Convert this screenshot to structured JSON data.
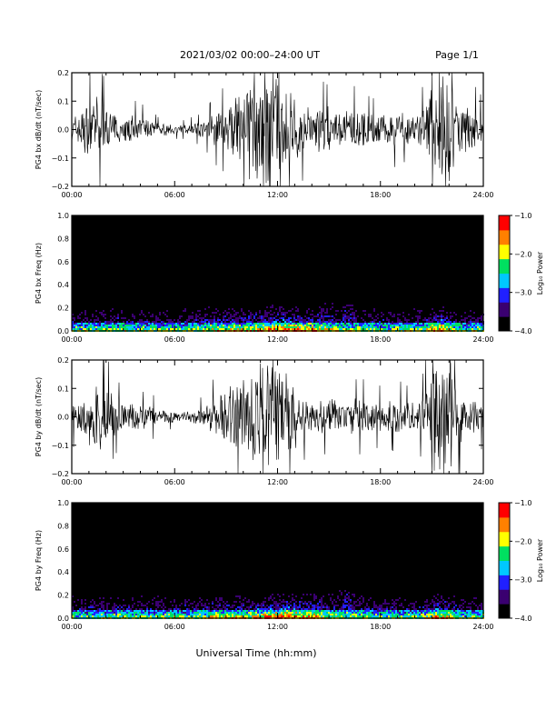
{
  "header": {
    "date_range": "2021/03/02  00:00–24:00 UT",
    "page": "Page 1/1"
  },
  "xlabel": "Universal Time (hh:mm)",
  "colorbar": {
    "label": "Log₁₀ Power",
    "ticks": [
      "−1.0",
      "−2.0",
      "−3.0",
      "−4.0"
    ],
    "colors": [
      "#000000",
      "#3a0070",
      "#2020ff",
      "#00c8ff",
      "#00e060",
      "#ffff00",
      "#ff8000",
      "#ff0000"
    ]
  },
  "chart_data": [
    {
      "type": "line",
      "title": "2021/03/02  00:00–24:00 UT",
      "ylabel": "PG4 bx dB/dt (nT/sec)",
      "xlim": [
        0,
        24
      ],
      "ylim": [
        -0.2,
        0.2
      ],
      "x_ticks": [
        "00:00",
        "06:00",
        "12:00",
        "18:00",
        "24:00"
      ],
      "y_ticks": [
        "0.2",
        "0.1",
        "0.0",
        "−0.1",
        "−0.2"
      ],
      "color": "#000000",
      "series": [
        {
          "x": [
            0,
            0.5,
            1,
            1.5,
            2,
            2.5,
            3,
            3.5,
            4,
            4.5,
            5,
            5.5,
            6,
            6.5,
            7,
            7.5,
            8,
            8.5,
            9,
            9.5,
            10,
            10.5,
            11,
            11.5,
            12,
            12.5,
            13,
            13.5,
            14,
            14.5,
            15,
            15.5,
            16,
            16.5,
            17,
            17.5,
            18,
            18.5,
            19,
            19.5,
            20,
            20.5,
            21,
            21.5,
            22,
            22.5,
            23,
            23.5,
            24
          ],
          "amplitude": [
            0.04,
            0.07,
            0.09,
            0.1,
            0.08,
            0.05,
            0.04,
            0.05,
            0.04,
            0.04,
            0.02,
            0.02,
            0.015,
            0.015,
            0.02,
            0.025,
            0.04,
            0.06,
            0.07,
            0.1,
            0.14,
            0.2,
            0.2,
            0.2,
            0.2,
            0.14,
            0.1,
            0.08,
            0.07,
            0.08,
            0.07,
            0.06,
            0.06,
            0.07,
            0.06,
            0.05,
            0.05,
            0.06,
            0.06,
            0.05,
            0.05,
            0.07,
            0.2,
            0.2,
            0.2,
            0.1,
            0.07,
            0.07,
            0.05
          ]
        }
      ]
    },
    {
      "type": "heatmap",
      "ylabel": "PG4 bx Freq (Hz)",
      "xlim": [
        0,
        24
      ],
      "ylim": [
        0,
        1.0
      ],
      "zlim": [
        -4.0,
        -1.0
      ],
      "x_ticks": [
        "00:00",
        "06:00",
        "12:00",
        "18:00",
        "24:00"
      ],
      "y_ticks": [
        "1.0",
        "0.8",
        "0.6",
        "0.4",
        "0.2",
        "0.0"
      ]
    },
    {
      "type": "line",
      "ylabel": "PG4 by dB/dt (nT/sec)",
      "xlim": [
        0,
        24
      ],
      "ylim": [
        -0.2,
        0.2
      ],
      "x_ticks": [
        "00:00",
        "06:00",
        "12:00",
        "18:00",
        "24:00"
      ],
      "y_ticks": [
        "0.2",
        "0.1",
        "0.0",
        "−0.1",
        "−0.2"
      ],
      "color": "#000000",
      "series": [
        {
          "x": [
            0,
            0.5,
            1,
            1.5,
            2,
            2.5,
            3,
            3.5,
            4,
            4.5,
            5,
            5.5,
            6,
            6.5,
            7,
            7.5,
            8,
            8.5,
            9,
            9.5,
            10,
            10.5,
            11,
            11.5,
            12,
            12.5,
            13,
            13.5,
            14,
            14.5,
            15,
            15.5,
            16,
            16.5,
            17,
            17.5,
            18,
            18.5,
            19,
            19.5,
            20,
            20.5,
            21,
            21.5,
            22,
            22.5,
            23,
            23.5,
            24
          ],
          "amplitude": [
            0.04,
            0.08,
            0.1,
            0.12,
            0.1,
            0.06,
            0.05,
            0.05,
            0.04,
            0.04,
            0.03,
            0.02,
            0.02,
            0.02,
            0.025,
            0.03,
            0.05,
            0.07,
            0.09,
            0.12,
            0.14,
            0.2,
            0.2,
            0.2,
            0.2,
            0.14,
            0.1,
            0.07,
            0.06,
            0.06,
            0.06,
            0.05,
            0.05,
            0.06,
            0.06,
            0.05,
            0.05,
            0.05,
            0.06,
            0.05,
            0.05,
            0.07,
            0.2,
            0.2,
            0.2,
            0.12,
            0.06,
            0.06,
            0.05
          ]
        }
      ]
    },
    {
      "type": "heatmap",
      "ylabel": "PG4 by Freq (Hz)",
      "xlim": [
        0,
        24
      ],
      "ylim": [
        0,
        1.0
      ],
      "zlim": [
        -4.0,
        -1.0
      ],
      "x_ticks": [
        "00:00",
        "06:00",
        "12:00",
        "18:00",
        "24:00"
      ],
      "y_ticks": [
        "1.0",
        "0.8",
        "0.6",
        "0.4",
        "0.2",
        "0.0"
      ]
    }
  ]
}
